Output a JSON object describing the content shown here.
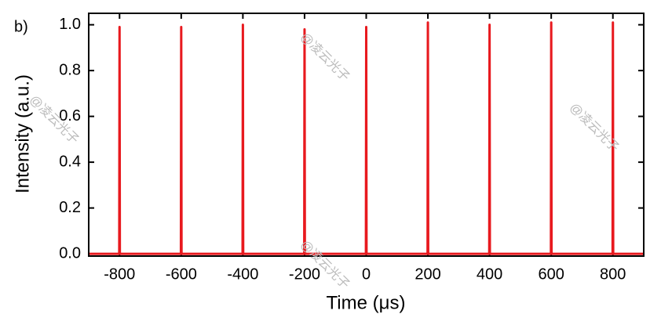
{
  "chart_data": {
    "type": "line",
    "panel_label": "b)",
    "x_label": "Time (μs)",
    "y_label": "Intensity (a.u.)",
    "x": [
      -900,
      -801,
      -800,
      -799,
      -601,
      -600,
      -599,
      -401,
      -400,
      -399,
      -201,
      -200,
      -199,
      -1,
      0,
      1,
      199,
      200,
      201,
      399,
      400,
      401,
      599,
      600,
      601,
      799,
      800,
      801,
      900
    ],
    "series": [
      {
        "color": "#e8191e",
        "values": [
          0,
          0,
          0.99,
          0,
          0,
          0.99,
          0,
          0,
          1.0,
          0,
          0,
          0.98,
          0,
          0,
          0.99,
          0,
          0,
          1.01,
          0,
          0,
          1.0,
          0,
          0,
          1.01,
          0,
          0,
          1.01,
          0,
          0
        ]
      }
    ],
    "xlim": [
      -900,
      900
    ],
    "ylim": [
      -0.01,
      1.05
    ],
    "xticks": [
      -800,
      -600,
      -400,
      -200,
      0,
      200,
      400,
      600,
      800
    ],
    "yticks": [
      {
        "value": 0,
        "label": "0.0"
      },
      0.2,
      0.4,
      0.6,
      0.8,
      {
        "value": 1,
        "label": "1.0"
      }
    ],
    "annotations": [
      "@凌云光子",
      "@凌云光子",
      "@凌云光子",
      "@凌云光子"
    ]
  }
}
